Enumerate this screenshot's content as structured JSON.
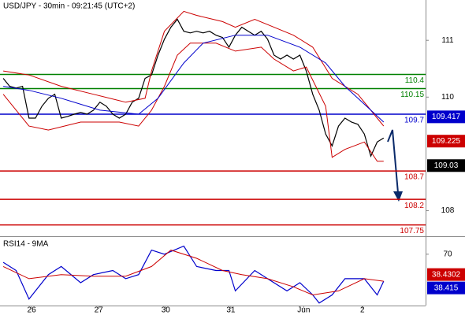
{
  "chart_data": [
    {
      "type": "line",
      "title": "USD/JPY - 30min - 09:21:45 (UTC+2)",
      "xlim": [
        -0.5,
        65.5
      ],
      "ylim": [
        107.55,
        111.71
      ],
      "yticks": [
        108,
        110,
        111
      ],
      "x": [
        0,
        1,
        2,
        3,
        4,
        5,
        6,
        7,
        8,
        9,
        10,
        11,
        12,
        13,
        14,
        15,
        16,
        17,
        18,
        19,
        20,
        21,
        22,
        23,
        24,
        25,
        26,
        27,
        28,
        29,
        30,
        31,
        32,
        33,
        34,
        35,
        36,
        37,
        38,
        39,
        40,
        41,
        42,
        43,
        44,
        45,
        46,
        47,
        48,
        49,
        50,
        51,
        52,
        53,
        54,
        55,
        56,
        57,
        58,
        59
      ],
      "series": [
        {
          "color": "#000000",
          "values": [
            110.33,
            110.19,
            110.16,
            110.19,
            109.63,
            109.63,
            109.84,
            109.98,
            110.05,
            109.63,
            109.66,
            109.7,
            109.73,
            109.7,
            109.77,
            109.91,
            109.84,
            109.7,
            109.63,
            109.7,
            109.91,
            109.98,
            110.33,
            110.39,
            110.74,
            111.02,
            111.23,
            111.37,
            111.16,
            111.13,
            111.16,
            111.13,
            111.16,
            111.09,
            111.05,
            110.88,
            111.09,
            111.23,
            111.16,
            111.09,
            111.16,
            111.02,
            110.74,
            110.67,
            110.74,
            110.67,
            110.74,
            110.46,
            110.05,
            109.77,
            109.35,
            109.14,
            109.49,
            109.63,
            109.56,
            109.52,
            109.35,
            108.96,
            109.21,
            109.28
          ]
        },
        {
          "color": "#cc0000",
          "x": [
            0,
            4,
            9,
            14,
            19,
            22,
            23,
            25,
            28,
            30,
            34,
            36,
            39,
            42,
            45,
            48,
            51,
            55,
            58,
            59
          ],
          "values": [
            110.46,
            110.39,
            110.19,
            110.05,
            109.91,
            109.98,
            110.46,
            111.16,
            111.51,
            111.44,
            111.33,
            111.23,
            111.37,
            111.23,
            111.09,
            110.88,
            110.33,
            110.05,
            109.63,
            109.49
          ]
        },
        {
          "color": "#cc0000",
          "x": [
            0,
            4,
            7,
            12,
            18,
            21,
            23,
            25,
            27,
            29,
            33,
            36,
            40,
            42,
            45,
            47,
            50,
            51,
            53,
            56,
            58,
            59
          ],
          "values": [
            110.05,
            109.49,
            109.42,
            109.56,
            109.56,
            109.49,
            109.77,
            110.19,
            110.74,
            110.95,
            110.95,
            110.81,
            110.88,
            110.67,
            110.46,
            110.53,
            109.84,
            108.94,
            109.08,
            109.21,
            108.87,
            108.87
          ]
        },
        {
          "color": "#0000cc",
          "x": [
            0,
            4,
            9,
            15,
            21,
            24,
            28,
            31,
            36,
            41,
            46,
            50,
            53,
            57,
            59
          ],
          "values": [
            110.19,
            110.12,
            109.98,
            109.77,
            109.7,
            109.98,
            110.6,
            110.95,
            111.09,
            111.09,
            110.88,
            110.6,
            110.19,
            109.77,
            109.56
          ]
        }
      ],
      "levels": [
        {
          "value": 110.4,
          "color": "#008000"
        },
        {
          "value": 110.15,
          "color": "#008000"
        },
        {
          "value": 109.7,
          "color": "#0000cc"
        },
        {
          "value": 108.7,
          "color": "#cc0000"
        },
        {
          "value": 108.2,
          "color": "#cc0000"
        },
        {
          "value": 107.75,
          "color": "#cc0000"
        }
      ],
      "price_tags": [
        {
          "value": 109.417,
          "color": "#0000cc"
        },
        {
          "value": 109.225,
          "color": "#cc0000"
        },
        {
          "value": 109.03,
          "color": "#000000"
        }
      ]
    },
    {
      "type": "line",
      "title": "RSI14 - 9MA",
      "xlim": [
        -0.5,
        65.5
      ],
      "ylim": [
        10,
        91
      ],
      "yticks": [
        70
      ],
      "xticks": [
        {
          "value": 4.4,
          "label": "26"
        },
        {
          "value": 14.8,
          "label": "27"
        },
        {
          "value": 25.2,
          "label": "30"
        },
        {
          "value": 35.3,
          "label": "31"
        },
        {
          "value": 46.6,
          "label": "Jun"
        },
        {
          "value": 55.7,
          "label": "2"
        }
      ],
      "series": [
        {
          "color": "#0000cc",
          "x": [
            0,
            2,
            4,
            7,
            9,
            12,
            14,
            17,
            19,
            21,
            23,
            25,
            28,
            30,
            33,
            35,
            36,
            39,
            41,
            44,
            46,
            48,
            49,
            51,
            53,
            56,
            58,
            59
          ],
          "values": [
            60.5,
            51,
            17.6,
            46.2,
            55.7,
            36.7,
            46.2,
            51,
            41.4,
            46.2,
            74.8,
            70,
            79.5,
            55.7,
            51,
            51,
            27.1,
            51,
            41.4,
            27.1,
            36.7,
            22.4,
            12.9,
            22.4,
            41.4,
            41.4,
            22.4,
            38.415
          ]
        },
        {
          "color": "#cc0000",
          "x": [
            0,
            4,
            9,
            14,
            19,
            23,
            26,
            30,
            34,
            37,
            41,
            45,
            48,
            52,
            56,
            59
          ],
          "values": [
            55.7,
            41.4,
            46.2,
            44.3,
            44.3,
            55.7,
            74.8,
            65.2,
            51,
            46.2,
            41.4,
            31.9,
            22.4,
            27.1,
            41.4,
            38.4302
          ]
        }
      ],
      "price_tags": [
        {
          "value": 38.4302,
          "color": "#cc0000"
        },
        {
          "value": 38.415,
          "color": "#0000cc"
        }
      ]
    }
  ]
}
